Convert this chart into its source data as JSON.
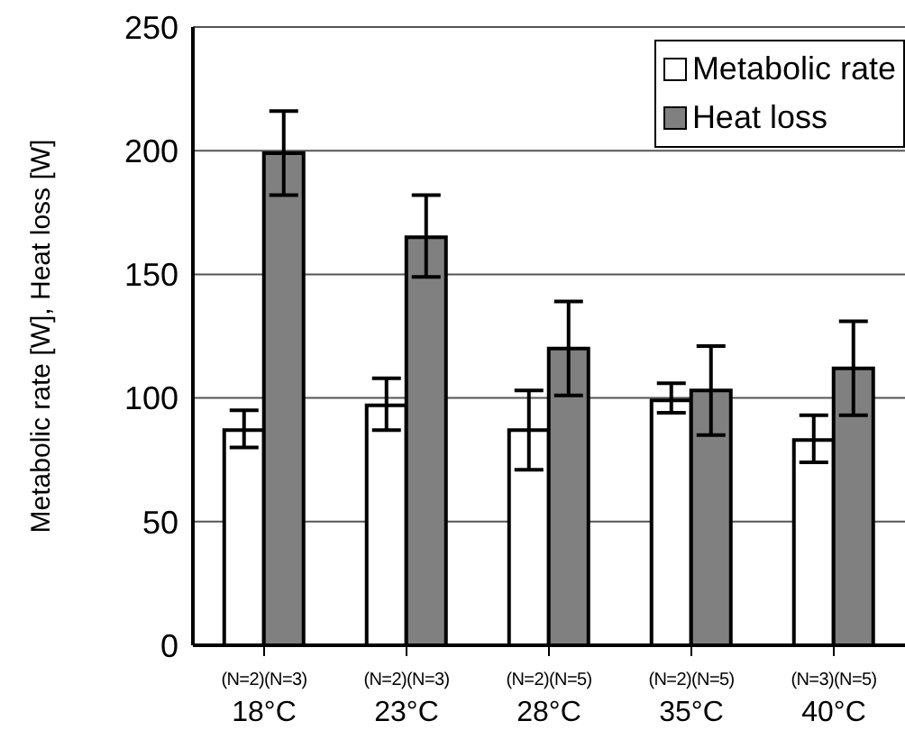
{
  "chart_data": {
    "type": "bar",
    "ylabel": "Metabolic rate [W], Heat loss [W]",
    "categories": [
      "(N=2)(N=3)\n18°C",
      "(N=2)(N=3)\n23°C",
      "(N=2)(N=5)\n28°C",
      "(N=2)(N=5)\n35°C",
      "(N=3)(N=5)\n40°C"
    ],
    "series": [
      {
        "name": "Metabolic rate",
        "color": "#ffffff",
        "values": [
          87,
          97,
          87,
          99,
          83
        ],
        "errors": [
          [
            80,
            95
          ],
          [
            87,
            108
          ],
          [
            71,
            103
          ],
          [
            94,
            106
          ],
          [
            74,
            93
          ]
        ]
      },
      {
        "name": "Heat loss",
        "color": "#808080",
        "values": [
          199,
          165,
          120,
          103,
          112
        ],
        "errors": [
          [
            182,
            216
          ],
          [
            149,
            182
          ],
          [
            101,
            139
          ],
          [
            85,
            121
          ],
          [
            93,
            131
          ]
        ]
      }
    ],
    "ylim": [
      0,
      250
    ],
    "yticks": [
      0,
      50,
      100,
      150,
      200,
      250
    ],
    "grid": "y",
    "legend": "top right"
  }
}
